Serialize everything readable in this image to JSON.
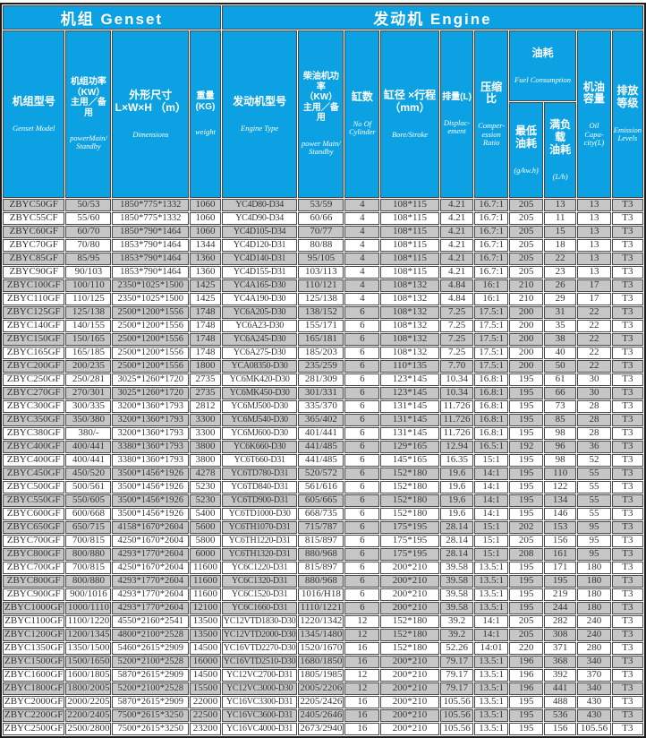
{
  "colors": {
    "header_blue": "#0ba1e2",
    "row_gray": "#c6c6c6",
    "row_white": "#ffffff",
    "border": "#4a4a4a",
    "text": "#333333"
  },
  "table": {
    "band": {
      "genset": "机组 Genset",
      "engine": "发动机 Engine"
    },
    "headers": {
      "model": {
        "zh": "机组型号",
        "en": "Genset Model"
      },
      "power": {
        "zh": "机组功率\n（KW）\n主用／备用",
        "en": "powerMain/\nStandby"
      },
      "dimensions": {
        "zh": "外形尺寸\nL×W×H （m）",
        "en": "Dimensions"
      },
      "weight": {
        "zh": "重量\n(KG)",
        "en": "weight"
      },
      "engine_type": {
        "zh": "发动机型号",
        "en": "Engine Type"
      },
      "engine_power": {
        "zh": "柴油机功率\n（KW）\n主用／备用",
        "en": "power Main/\nStandby"
      },
      "cylinders": {
        "zh": "缸数",
        "en": "No Of\nCylinder"
      },
      "bore_stroke": {
        "zh": "缸径 ×行程\n（mm）",
        "en": "Bore/Stroke"
      },
      "displacement": {
        "zh": "排量(L)",
        "en": "Displac-\nement"
      },
      "compression": {
        "zh": "压缩比",
        "en": "Comper-\nession\nRatio"
      },
      "fuel_group": {
        "zh": "油耗",
        "en": "Fuel Consumption"
      },
      "fuel_min": {
        "zh": "最低\n油耗",
        "en": "(g/kw.h)"
      },
      "fuel_full": {
        "zh": "满负载\n油耗",
        "en": "(L/h)"
      },
      "oil": {
        "zh": "机油\n容量",
        "en": "Oil Capa-\ncity(L)"
      },
      "emission": {
        "zh": "排放\n等级",
        "en": "Emission\nLevels"
      }
    },
    "column_keys": [
      "genset-model",
      "genset-power",
      "dimensions",
      "weight",
      "engine-type",
      "engine-power",
      "cylinders",
      "bore-stroke",
      "displacement",
      "compression-ratio",
      "min-fuel-consumption",
      "full-load-fuel-consumption",
      "oil-capacity",
      "emission-level"
    ],
    "rows": [
      [
        "ZBYC50GF",
        "50/53",
        "1850*775*1332",
        "1060",
        "YC4D80-D34",
        "53/59",
        "4",
        "108*115",
        "4.21",
        "16.7:1",
        "205",
        "13",
        "13",
        "T3"
      ],
      [
        "ZBYC55CF",
        "55/60",
        "1850*775*1332",
        "1060",
        "YC4D90-D34",
        "60/66",
        "4",
        "108*115",
        "4.21",
        "16.7:1",
        "205",
        "11",
        "13",
        "T3"
      ],
      [
        "ZBYC60GF",
        "60/70",
        "1850*790*1464",
        "1060",
        "YC4D105-D34",
        "70/77",
        "4",
        "108*115",
        "4.21",
        "16.7:1",
        "205",
        "15",
        "13",
        "T3"
      ],
      [
        "ZBYC70GF",
        "70/80",
        "1853*790*1464",
        "1344",
        "YC4D120-D31",
        "80/88",
        "4",
        "108*115",
        "4.21",
        "16.7:1",
        "205",
        "18",
        "13",
        "T3"
      ],
      [
        "ZBYC85GF",
        "85/95",
        "1853*790*1464",
        "1360",
        "YC4D140-D31",
        "95/105",
        "4",
        "108*115",
        "4.21",
        "16.7:1",
        "205",
        "22",
        "13",
        "T3"
      ],
      [
        "ZBYC90GF",
        "90/103",
        "1853*790*1464",
        "1360",
        "YC4D155-D31",
        "103/113",
        "4",
        "108*115",
        "4.21",
        "16.7:1",
        "205",
        "23",
        "13",
        "T3"
      ],
      [
        "ZBYC100GF",
        "100/110",
        "2350*1025*1500",
        "1425",
        "YC4A165-D30",
        "110/121",
        "4",
        "108*132",
        "4.84",
        "16:1",
        "210",
        "26",
        "17",
        "T3"
      ],
      [
        "ZBYC110GF",
        "110/125",
        "2350*1025*1500",
        "1425",
        "YC4A190-D30",
        "125/138",
        "4",
        "108*132",
        "4.84",
        "16:1",
        "210",
        "29",
        "17",
        "T3"
      ],
      [
        "ZBYC125GF",
        "125/138",
        "2500*1200*1556",
        "1748",
        "YC6A205-D30",
        "138/152",
        "6",
        "108*132",
        "7.25",
        "17.5:1",
        "200",
        "31",
        "22",
        "T3"
      ],
      [
        "ZBYC140GF",
        "140/155",
        "2500*1200*1556",
        "1748",
        "YC6A23-D30",
        "155/171",
        "6",
        "108*132",
        "7.25",
        "17.5:1",
        "200",
        "35",
        "22",
        "T3"
      ],
      [
        "ZBYC150GF",
        "150/165",
        "2500*1200*1556",
        "1748",
        "YC6A245-D30",
        "165/181",
        "6",
        "108*132",
        "7.25",
        "17.5:1",
        "200",
        "38",
        "22",
        "T3"
      ],
      [
        "ZBYC165GF",
        "165/185",
        "2500*1200*1556",
        "1748",
        "YC6A275-D30",
        "185/203",
        "6",
        "108*132",
        "7.25",
        "17.5:1",
        "200",
        "40",
        "22",
        "T3"
      ],
      [
        "ZBYC200GF",
        "200/235",
        "2500*1200*1556",
        "1800",
        "YCA08350-D30",
        "235/259",
        "6",
        "110*135",
        "7.70",
        "17.5:1",
        "200",
        "50",
        "22",
        "T3"
      ],
      [
        "ZBYC250GF",
        "250/281",
        "3025*1260*1720",
        "2735",
        "YC6MK420-D30",
        "281/309",
        "6",
        "123*145",
        "10.34",
        "16.8:1",
        "195",
        "61",
        "30",
        "T3"
      ],
      [
        "ZBYC270GF",
        "270/301",
        "3025*1260*1720",
        "2735",
        "YC6MK450-D30",
        "301/331",
        "6",
        "123*145",
        "10.34",
        "16.8:1",
        "195",
        "66",
        "30",
        "T3"
      ],
      [
        "ZBYC300GF",
        "300/335",
        "3200*1360*1793",
        "2812",
        "YC6MJ500-D30",
        "335/370",
        "6",
        "131*145",
        "11.726",
        "16.8:1",
        "195",
        "73",
        "28",
        "T3"
      ],
      [
        "ZBYC350GF",
        "350/380",
        "3200*1360*1793",
        "3300",
        "YC6MJ540-D30",
        "365/402",
        "6",
        "131*145",
        "11.726",
        "16.8:1",
        "195",
        "85",
        "28",
        "T3"
      ],
      [
        "ZBYC380GF",
        "380/-",
        "3200*1360*1793",
        "3300",
        "YC6MJ600-D30",
        "401/441",
        "6",
        "131*145",
        "11.726",
        "16.8:1",
        "195",
        "98",
        "28",
        "T3"
      ],
      [
        "ZBYC400GF",
        "400/441",
        "3380*1360*1793",
        "3800",
        "YC6K660-D30",
        "441/485",
        "6",
        "129*165",
        "12.94",
        "16.5:1",
        "192",
        "96",
        "36",
        "T3"
      ],
      [
        "ZBYC400GF",
        "400/441",
        "3380*1360*1793",
        "3800",
        "YC6T660-D31",
        "441/485",
        "6",
        "145*165",
        "16.35",
        "15:1",
        "195",
        "98",
        "52",
        "T3"
      ],
      [
        "ZBYC450GF",
        "450/520",
        "3500*1456*1926",
        "4278",
        "YC6TD780-D31",
        "520/572",
        "6",
        "152*180",
        "19.6",
        "14:1",
        "195",
        "110",
        "55",
        "T3"
      ],
      [
        "ZBYC500GF",
        "500/561",
        "3500*1456*1926",
        "5230",
        "YC6TD840-D31",
        "561/616",
        "6",
        "152*180",
        "19.6",
        "14:1",
        "195",
        "122",
        "55",
        "T3"
      ],
      [
        "ZBYC550GF",
        "550/605",
        "3500*1456*1926",
        "5230",
        "YC6TD900-D31",
        "605/665",
        "6",
        "152*180",
        "19.6",
        "14:1",
        "195",
        "134",
        "55",
        "T3"
      ],
      [
        "ZBYC600GF",
        "600/668",
        "3500*1456*1926",
        "5400",
        "YC6TD1000-D30",
        "668/735",
        "6",
        "152*180",
        "19.6",
        "14:1",
        "195",
        "146",
        "55",
        "T3"
      ],
      [
        "ZBYC650GF",
        "650/715",
        "4158*1670*2604",
        "5600",
        "YC6TH1070-D31",
        "715/787",
        "6",
        "175*195",
        "28.14",
        "15:1",
        "202",
        "153",
        "95",
        "T3"
      ],
      [
        "ZBYC700GF",
        "700/815",
        "4250*1670*2604",
        "5800",
        "YC6TH1220-D31",
        "815/897",
        "6",
        "175*195",
        "28.14",
        "15:1",
        "205",
        "156",
        "95",
        "T3"
      ],
      [
        "ZBYC800GF",
        "800/880",
        "4293*1770*2604",
        "6000",
        "YC6TH1320-D31",
        "880/968",
        "6",
        "175*195",
        "28.14",
        "15:1",
        "208",
        "161",
        "95",
        "T3"
      ],
      [
        "ZBYC700GF",
        "700/815",
        "4250*1670*2604",
        "11600",
        "YC6C1220-D31",
        "815/897",
        "6",
        "200*210",
        "39.58",
        "13.5:1",
        "195",
        "171",
        "180",
        "T3"
      ],
      [
        "ZBYC800GF",
        "800/880",
        "4293*1770*2604",
        "11600",
        "YC6C1320-D31",
        "880/968",
        "6",
        "200*210",
        "39.58",
        "13.5:1",
        "195",
        "195",
        "180",
        "T3"
      ],
      [
        "ZBYC900GF",
        "900/1016",
        "4293*1770*2604",
        "11600",
        "YC6C1520-D31",
        "1016/H18",
        "6",
        "200*210",
        "39.58",
        "13.5:1",
        "195",
        "219",
        "180",
        "T3"
      ],
      [
        "ZBYC1000GF",
        "1000/1110",
        "4293*1770*2604",
        "12100",
        "YC6C1660-D31",
        "1110/1221",
        "6",
        "200*210",
        "39.58",
        "13.5:1",
        "195",
        "244",
        "180",
        "T3"
      ],
      [
        "ZBYC1100GF",
        "1100/1220",
        "4550*2160*2541",
        "13500",
        "YC12VTD1830-D30",
        "1220/1342",
        "12",
        "152*180",
        "39.2",
        "14:1",
        "205",
        "282",
        "240",
        "T3"
      ],
      [
        "ZBYC1200GF",
        "1200/1345",
        "4800*2100*2528",
        "13500",
        "YC12VTD2000-D30",
        "1345/1480",
        "12",
        "152*180",
        "39.2",
        "14:1",
        "205",
        "308",
        "240",
        "T3"
      ],
      [
        "ZBYC1350GF",
        "1350/1500",
        "5460*2615*2909",
        "14500",
        "YC16VTD2270-D30",
        "1520/1670",
        "16",
        "152*180",
        "52.26",
        "14:01",
        "220",
        "371",
        "280",
        "T3"
      ],
      [
        "ZBYC1500GF",
        "1500/1650",
        "5200*2100*2528",
        "16000",
        "YC16VTD2510-D30",
        "1680/1850",
        "16",
        "200*210",
        "79.17",
        "13.5:1",
        "196",
        "368",
        "340",
        "T3"
      ],
      [
        "ZBYC1600GF",
        "1600/1805",
        "5870*2615*2909",
        "14500",
        "YC12VC2700-D31",
        "1805/1985",
        "12",
        "200*210",
        "79.17",
        "13.5:1",
        "196",
        "392",
        "370",
        "T3"
      ],
      [
        "ZBYC1800GF",
        "1800/2005",
        "5200*2100*2528",
        "15500",
        "YC12VC3000-D30",
        "2005/2206",
        "12",
        "200*210",
        "79.17",
        "13.5:1",
        "196",
        "441",
        "340",
        "T3"
      ],
      [
        "ZBYC2000GF",
        "2000/2205",
        "5870*2615*2909",
        "22000",
        "YC16VC3300-D31",
        "2205/2426",
        "16",
        "200*210",
        "105.56",
        "13.5:1",
        "195",
        "488",
        "430",
        "T3"
      ],
      [
        "ZBYC2200GF",
        "2200/2405",
        "7500*2615*3250",
        "22500",
        "YC16VC3600-D31",
        "2405/2646",
        "16",
        "200*210",
        "105.56",
        "13.5:1",
        "195",
        "536",
        "430",
        "T3"
      ],
      [
        "ZBYC2500GF",
        "2500/2800",
        "7500*2615*3250",
        "23200",
        "YC16VC4000-D31",
        "2673/2940",
        "16",
        "200*210",
        "105.56",
        "13.5:1",
        "195",
        "156",
        "105.56",
        "T3"
      ]
    ]
  }
}
